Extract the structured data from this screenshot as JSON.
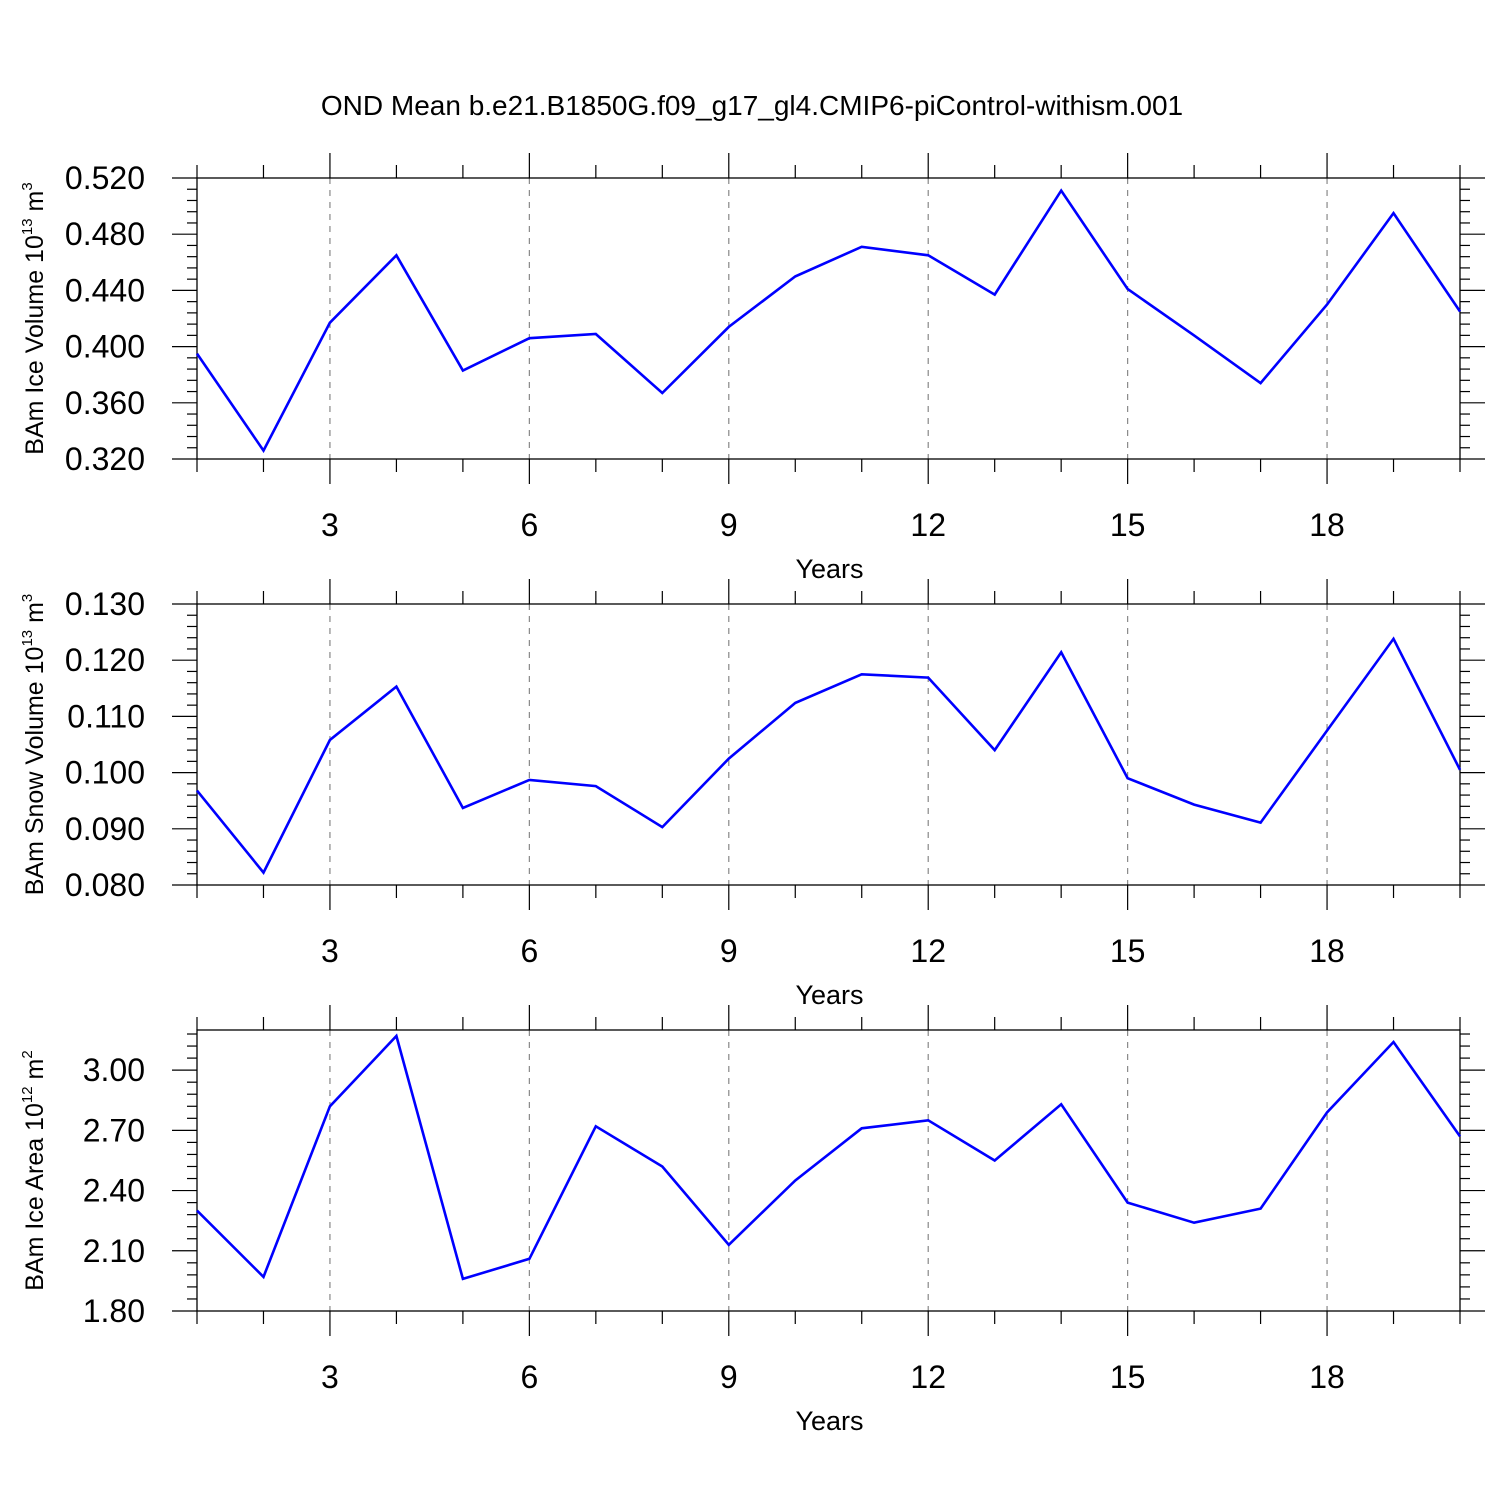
{
  "title": "OND Mean b.e21.B1850G.f09_g17_gl4.CMIP6-piControl-withism.001",
  "line_color": "#0000ff",
  "chart_data": [
    {
      "type": "line",
      "ylabel": {
        "text": "BAm Ice Volume 10",
        "exp": "13",
        "unit": " m",
        "unit_exp": "3"
      },
      "xlabel": "Years",
      "xlim": [
        1,
        20
      ],
      "ylim": [
        0.32,
        0.52
      ],
      "xticks": [
        3,
        6,
        9,
        12,
        15,
        18
      ],
      "yticks": [
        "0.320",
        "0.360",
        "0.400",
        "0.440",
        "0.480",
        "0.520"
      ],
      "grid_x": true,
      "x": [
        1,
        2,
        3,
        4,
        5,
        6,
        7,
        8,
        9,
        10,
        11,
        12,
        13,
        14,
        15,
        16,
        17,
        18,
        19,
        20
      ],
      "values": [
        0.395,
        0.326,
        0.417,
        0.465,
        0.383,
        0.406,
        0.409,
        0.367,
        0.414,
        0.45,
        0.471,
        0.465,
        0.437,
        0.511,
        0.441,
        0.408,
        0.374,
        0.43,
        0.495,
        0.425
      ]
    },
    {
      "type": "line",
      "ylabel": {
        "text": "BAm Snow Volume 10",
        "exp": "13",
        "unit": " m",
        "unit_exp": "3"
      },
      "xlabel": "Years",
      "xlim": [
        1,
        20
      ],
      "ylim": [
        0.08,
        0.13
      ],
      "xticks": [
        3,
        6,
        9,
        12,
        15,
        18
      ],
      "yticks": [
        "0.080",
        "0.090",
        "0.100",
        "0.110",
        "0.120",
        "0.130"
      ],
      "grid_x": true,
      "x": [
        1,
        2,
        3,
        4,
        5,
        6,
        7,
        8,
        9,
        10,
        11,
        12,
        13,
        14,
        15,
        16,
        17,
        18,
        19,
        20
      ],
      "values": [
        0.0968,
        0.0822,
        0.1058,
        0.1153,
        0.0937,
        0.0987,
        0.0976,
        0.0903,
        0.1025,
        0.1124,
        0.1175,
        0.1169,
        0.104,
        0.1214,
        0.099,
        0.0943,
        0.0911,
        0.1075,
        0.1238,
        0.1005
      ]
    },
    {
      "type": "line",
      "ylabel": {
        "text": "BAm Ice Area 10",
        "exp": "12",
        "unit": " m",
        "unit_exp": "2"
      },
      "xlabel": "Years",
      "xlim": [
        1,
        20
      ],
      "ylim": [
        1.8,
        3.2
      ],
      "xticks": [
        3,
        6,
        9,
        12,
        15,
        18
      ],
      "yticks": [
        "1.80",
        "2.10",
        "2.40",
        "2.70",
        "3.00"
      ],
      "grid_x": true,
      "x": [
        1,
        2,
        3,
        4,
        5,
        6,
        7,
        8,
        9,
        10,
        11,
        12,
        13,
        14,
        15,
        16,
        17,
        18,
        19,
        20
      ],
      "values": [
        2.3,
        1.97,
        2.82,
        3.17,
        1.96,
        2.06,
        2.72,
        2.52,
        2.13,
        2.45,
        2.71,
        2.75,
        2.55,
        2.83,
        2.34,
        2.24,
        2.31,
        2.79,
        3.14,
        2.67
      ]
    }
  ]
}
